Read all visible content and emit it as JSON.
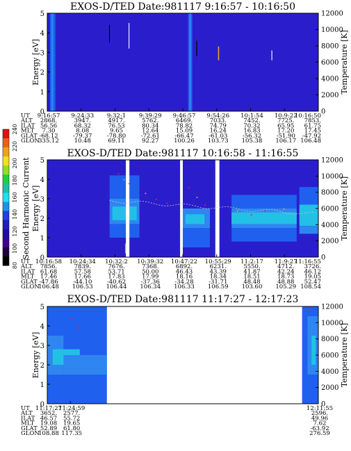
{
  "chart_data": [
    {
      "type": "heatmap",
      "title": "EXOS-D/TED    Date:981117   9:16:57 - 10:16:50",
      "ylabel": "Energy [eV]",
      "y2label": "Temperature [K]",
      "ylim": [
        0,
        5
      ],
      "y2lim": [
        0,
        12000
      ],
      "yticks": [
        "0",
        "1",
        "2",
        "3",
        "4",
        "5"
      ],
      "y2ticks": [
        "0",
        "2000",
        "4000",
        "6000",
        "8000",
        "10000",
        "12000"
      ],
      "ephemeris": [
        {
          "label": "UT",
          "values": [
            "9:16:57",
            "9:24:33",
            "9:32:1",
            "9:39:29",
            "9:46:57",
            "9:54:26",
            "10:1:54",
            "10:9:22",
            "10:16:50"
          ]
        },
        {
          "label": "ALT",
          "values": [
            "2868.",
            "3947.",
            "4917.",
            "5762.",
            "6469.",
            "7033.",
            "7452.",
            "7725.",
            "7853."
          ]
        },
        {
          "label": "ILAT",
          "values": [
            "56.56",
            "68.32",
            "76.53",
            "80.34",
            "78.82",
            "74.79",
            "70.32",
            "65.95",
            "61.75"
          ]
        },
        {
          "label": "MLT",
          "values": [
            "7.30",
            "8.08",
            "9.65",
            "12.64",
            "15.09",
            "16.24",
            "16.83",
            "17.20",
            "17.45"
          ]
        },
        {
          "label": "GLAT",
          "values": [
            "-68.12",
            "-79.37",
            "-78.80",
            "-72.61",
            "-66.47",
            "-61.03",
            "-56.32",
            "-51.90",
            "-47.92"
          ]
        },
        {
          "label": "GLON",
          "values": [
            "335.12",
            "10.48",
            "69.11",
            "92.27",
            "100.26",
            "103.73",
            "105.38",
            "106.17",
            "106.48"
          ]
        }
      ]
    },
    {
      "type": "heatmap",
      "title": "EXOS-D/TED    Date:981117   10:16:58 - 11:16:55",
      "ylabel": "Energy [eV]",
      "y2label": "Temperature [K]",
      "ylim": [
        0,
        5
      ],
      "y2lim": [
        0,
        12000
      ],
      "yticks": [
        "0",
        "1",
        "2",
        "3",
        "4",
        "5"
      ],
      "y2ticks": [
        "0",
        "2000",
        "4000",
        "6000",
        "8000",
        "10000",
        "12000"
      ],
      "colorbar": {
        "label": "Second Harmonic Current",
        "ticks": [
          "80",
          "100",
          "120",
          "140",
          "160",
          "180",
          "200",
          "220",
          "240"
        ],
        "range": [
          80,
          240
        ]
      },
      "ephemeris": [
        {
          "label": "UT",
          "values": [
            "10:16:58",
            "10:24:34",
            "10:32:2",
            "10:39:32",
            "10:47:22",
            "10:55:29",
            "11:2:17",
            "11:9:27",
            "11:16:55"
          ]
        },
        {
          "label": "ALT",
          "values": [
            "7856.",
            "7839.",
            "7676.",
            "7368.",
            "6892.",
            "6231.",
            "5550.",
            "4712.",
            "3726."
          ]
        },
        {
          "label": "ILAT",
          "values": [
            "61.68",
            "57.58",
            "53.71",
            "50.00",
            "46.43",
            "43.39",
            "41.87",
            "42.24",
            "46.12"
          ]
        },
        {
          "label": "MLT",
          "values": [
            "17.46",
            "17.66",
            "17.83",
            "17.99",
            "18.16",
            "18.34",
            "18.51",
            "18.73",
            "19.05"
          ]
        },
        {
          "label": "GLAT",
          "values": [
            "-47.86",
            "-44.10",
            "-40.62",
            "-37.36",
            "-34.28",
            "-31.71",
            "48.48",
            "48.88",
            "52.47"
          ]
        },
        {
          "label": "GLON",
          "values": [
            "106.48",
            "106.53",
            "106.44",
            "106.34",
            "106.33",
            "106.59",
            "103.60",
            "105.29",
            "108.54"
          ]
        }
      ]
    },
    {
      "type": "heatmap",
      "title": "EXOS-D/TED    Date:981117   11:17:27 - 12:17:23",
      "ylabel": "Energy [eV]",
      "y2label": "Temperature [K]",
      "ylim": [
        0,
        5
      ],
      "y2lim": [
        0,
        12000
      ],
      "yticks": [
        "0",
        "1",
        "2",
        "3",
        "4",
        "5"
      ],
      "y2ticks": [
        "0",
        "2000",
        "4000",
        "6000",
        "8000",
        "10000",
        "12000"
      ],
      "ephemeris": [
        {
          "label": "UT",
          "values": [
            "11:17:27",
            "11:24:59",
            "12:11:55"
          ]
        },
        {
          "label": "ALT",
          "values": [
            "3652.",
            "2577.",
            "2596."
          ]
        },
        {
          "label": "ILAT",
          "values": [
            "46.57",
            "55.72",
            "49.96"
          ]
        },
        {
          "label": "MLT",
          "values": [
            "19.08",
            "19.65",
            "7.62"
          ]
        },
        {
          "label": "GLAT",
          "values": [
            "52.89",
            "61.80",
            "-63.92"
          ]
        },
        {
          "label": "GLON",
          "values": [
            "108.88",
            "117.35",
            "276.59"
          ]
        }
      ]
    }
  ]
}
